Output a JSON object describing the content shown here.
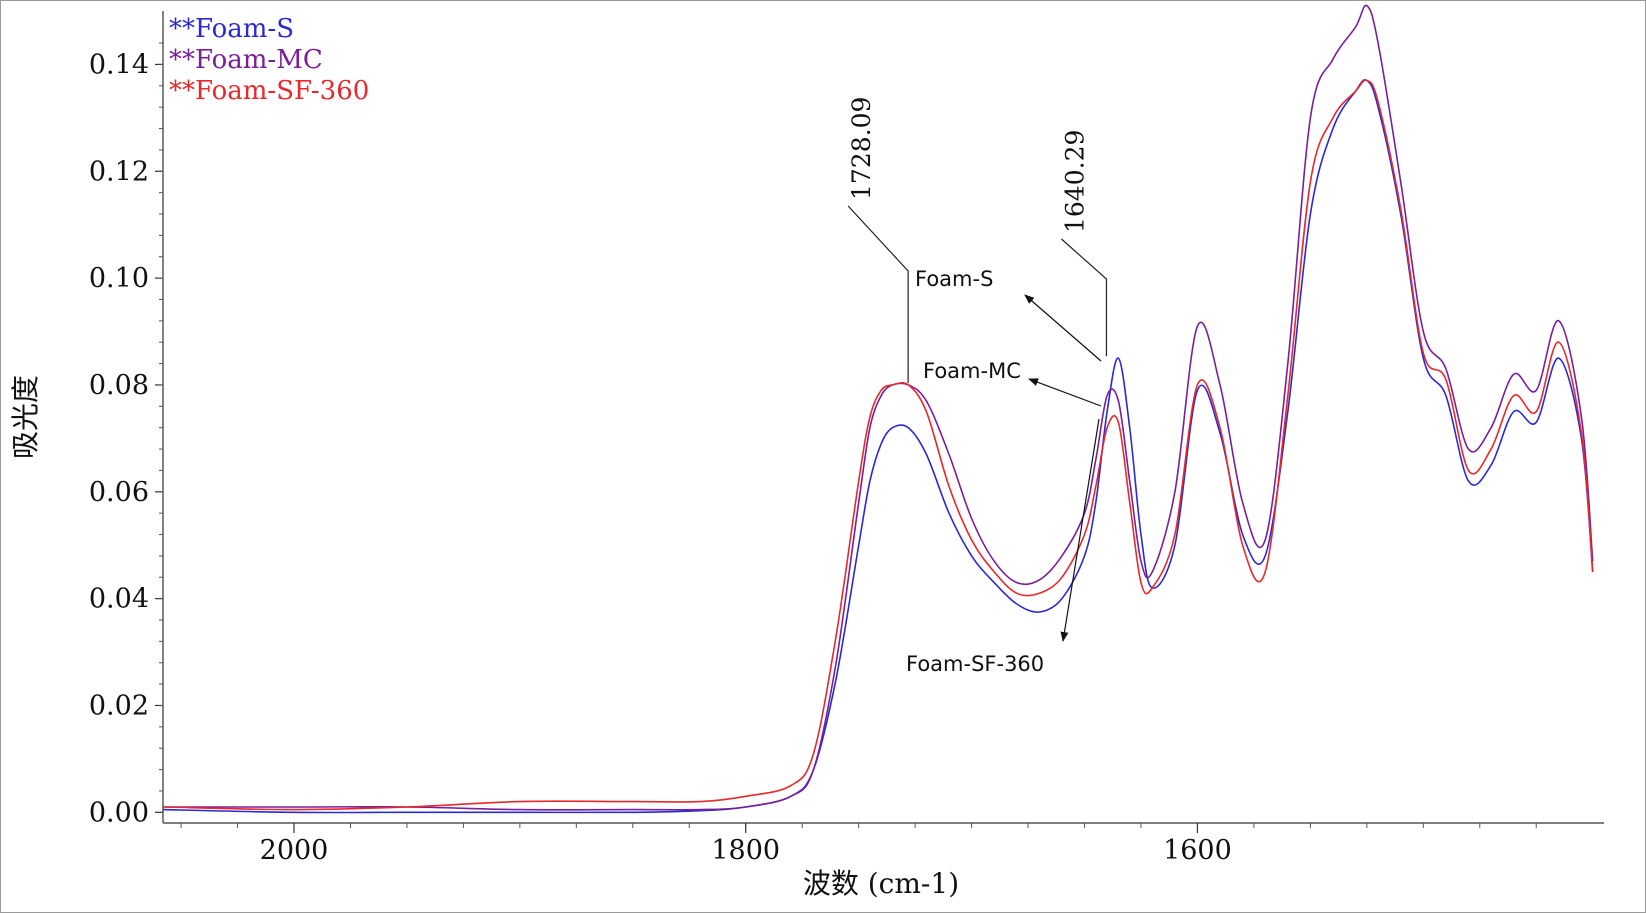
{
  "chart_data": {
    "type": "line",
    "title": "",
    "xlabel": "波数 (cm-1)",
    "ylabel": "吸光度",
    "xlim": [
      2058,
      1420
    ],
    "ylim": [
      -0.002,
      0.15
    ],
    "x_ticks": [
      2000,
      1800,
      1600
    ],
    "x_tick_labels": [
      "2000",
      "1800",
      "1600"
    ],
    "y_ticks": [
      0.0,
      0.02,
      0.04,
      0.06,
      0.08,
      0.1,
      0.12,
      0.14
    ],
    "y_tick_labels": [
      "0.00",
      "0.02",
      "0.04",
      "0.06",
      "0.08",
      "0.10",
      "0.12",
      "0.14"
    ],
    "grid": false,
    "legend": {
      "position": "top-left",
      "entries": [
        "**Foam-S",
        "**Foam-MC",
        "**Foam-SF-360"
      ]
    },
    "series": [
      {
        "name": "Foam-S",
        "color": "#2a2ad4",
        "x": [
          2058,
          2000,
          1950,
          1900,
          1850,
          1820,
          1800,
          1780,
          1770,
          1760,
          1750,
          1745,
          1740,
          1735,
          1728,
          1720,
          1710,
          1700,
          1690,
          1680,
          1670,
          1660,
          1650,
          1645,
          1640,
          1635,
          1630,
          1625,
          1620,
          1610,
          1600,
          1590,
          1580,
          1570,
          1560,
          1550,
          1540,
          1530,
          1525,
          1520,
          1510,
          1500,
          1490,
          1480,
          1470,
          1460,
          1450,
          1440,
          1430,
          1425
        ],
        "y": [
          0.0005,
          0.0,
          0.0,
          0.0,
          0.0,
          0.0003,
          0.001,
          0.003,
          0.008,
          0.025,
          0.05,
          0.062,
          0.069,
          0.072,
          0.072,
          0.067,
          0.056,
          0.048,
          0.043,
          0.039,
          0.0375,
          0.04,
          0.048,
          0.058,
          0.075,
          0.085,
          0.072,
          0.052,
          0.042,
          0.05,
          0.079,
          0.071,
          0.052,
          0.048,
          0.075,
          0.112,
          0.128,
          0.135,
          0.137,
          0.132,
          0.112,
          0.085,
          0.078,
          0.062,
          0.065,
          0.075,
          0.073,
          0.085,
          0.07,
          0.045
        ]
      },
      {
        "name": "Foam-MC",
        "color": "#7a1f9a",
        "x": [
          2058,
          2000,
          1950,
          1900,
          1850,
          1820,
          1800,
          1780,
          1770,
          1760,
          1750,
          1745,
          1740,
          1735,
          1728,
          1720,
          1710,
          1700,
          1690,
          1680,
          1670,
          1660,
          1650,
          1645,
          1640,
          1635,
          1630,
          1625,
          1620,
          1610,
          1600,
          1590,
          1580,
          1570,
          1560,
          1550,
          1540,
          1530,
          1525,
          1520,
          1510,
          1500,
          1490,
          1480,
          1470,
          1460,
          1450,
          1440,
          1430,
          1425
        ],
        "y": [
          0.001,
          0.001,
          0.001,
          0.0005,
          0.0005,
          0.0005,
          0.001,
          0.003,
          0.008,
          0.028,
          0.058,
          0.072,
          0.078,
          0.08,
          0.08,
          0.077,
          0.067,
          0.055,
          0.047,
          0.043,
          0.0435,
          0.048,
          0.056,
          0.066,
          0.078,
          0.077,
          0.062,
          0.047,
          0.045,
          0.06,
          0.091,
          0.08,
          0.058,
          0.051,
          0.084,
          0.13,
          0.141,
          0.147,
          0.151,
          0.144,
          0.118,
          0.09,
          0.083,
          0.068,
          0.072,
          0.082,
          0.079,
          0.092,
          0.074,
          0.047
        ]
      },
      {
        "name": "Foam-SF-360",
        "color": "#e8282a",
        "x": [
          2058,
          2000,
          1950,
          1900,
          1850,
          1820,
          1800,
          1780,
          1770,
          1760,
          1750,
          1745,
          1740,
          1735,
          1728,
          1720,
          1710,
          1700,
          1690,
          1680,
          1670,
          1660,
          1650,
          1645,
          1640,
          1635,
          1630,
          1625,
          1620,
          1610,
          1600,
          1590,
          1580,
          1570,
          1560,
          1550,
          1540,
          1530,
          1525,
          1520,
          1510,
          1500,
          1490,
          1480,
          1470,
          1460,
          1450,
          1440,
          1430,
          1425
        ],
        "y": [
          0.001,
          0.0005,
          0.001,
          0.002,
          0.002,
          0.002,
          0.003,
          0.005,
          0.011,
          0.033,
          0.062,
          0.074,
          0.079,
          0.08,
          0.08,
          0.075,
          0.061,
          0.051,
          0.045,
          0.041,
          0.041,
          0.044,
          0.052,
          0.061,
          0.072,
          0.073,
          0.058,
          0.043,
          0.042,
          0.052,
          0.08,
          0.072,
          0.05,
          0.045,
          0.078,
          0.118,
          0.13,
          0.135,
          0.137,
          0.133,
          0.113,
          0.086,
          0.081,
          0.064,
          0.068,
          0.078,
          0.075,
          0.088,
          0.071,
          0.045
        ]
      }
    ],
    "peak_labels": [
      {
        "text": "1728.09",
        "x": 1728.09
      },
      {
        "text": "1640.29",
        "x": 1640.29
      }
    ],
    "annotations": [
      {
        "text": "Foam-S"
      },
      {
        "text": "Foam-MC"
      },
      {
        "text": "Foam-SF-360"
      }
    ]
  }
}
